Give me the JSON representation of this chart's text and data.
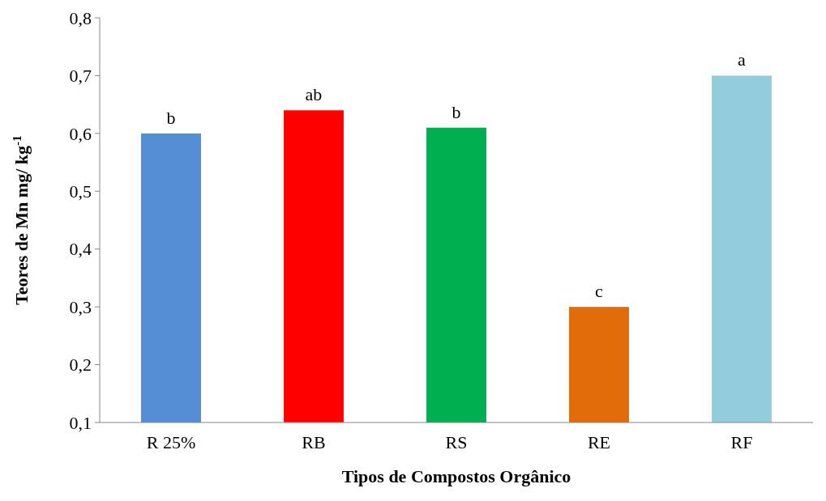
{
  "chart_data": {
    "type": "bar",
    "xlabel": "Tipos de Compostos Orgânico",
    "ylabel": "Teores de Mn mg/ kg$^{-1}$",
    "categories": [
      "R 25%",
      "RB",
      "RS",
      "RE",
      "RF"
    ],
    "values": [
      0.6,
      0.64,
      0.61,
      0.3,
      0.7
    ],
    "colors": [
      "#558ed5",
      "#ff0000",
      "#00b050",
      "#e36c0a",
      "#93cddd"
    ],
    "ylim": [
      0.1,
      0.8
    ],
    "yticks": [
      {
        "value": 0.1,
        "label": "0,1"
      },
      {
        "value": 0.2,
        "label": "0,2"
      },
      {
        "value": 0.3,
        "label": "0,3"
      },
      {
        "value": 0.4,
        "label": "0,4"
      },
      {
        "value": 0.5,
        "label": "0,5"
      },
      {
        "value": 0.6,
        "label": "0,6"
      },
      {
        "value": 0.7,
        "label": "0,7"
      },
      {
        "value": 0.8,
        "label": "0,8"
      }
    ],
    "annotations": [
      {
        "text": "b",
        "x": "R 25%",
        "y": 0.6
      },
      {
        "text": "ab",
        "x": "RB",
        "y": 0.64
      },
      {
        "text": "b",
        "x": "RS",
        "y": 0.61
      },
      {
        "text": "c",
        "x": "RE",
        "y": 0.3
      },
      {
        "text": "a",
        "x": "RF",
        "y": 0.7
      }
    ],
    "grid": false
  }
}
